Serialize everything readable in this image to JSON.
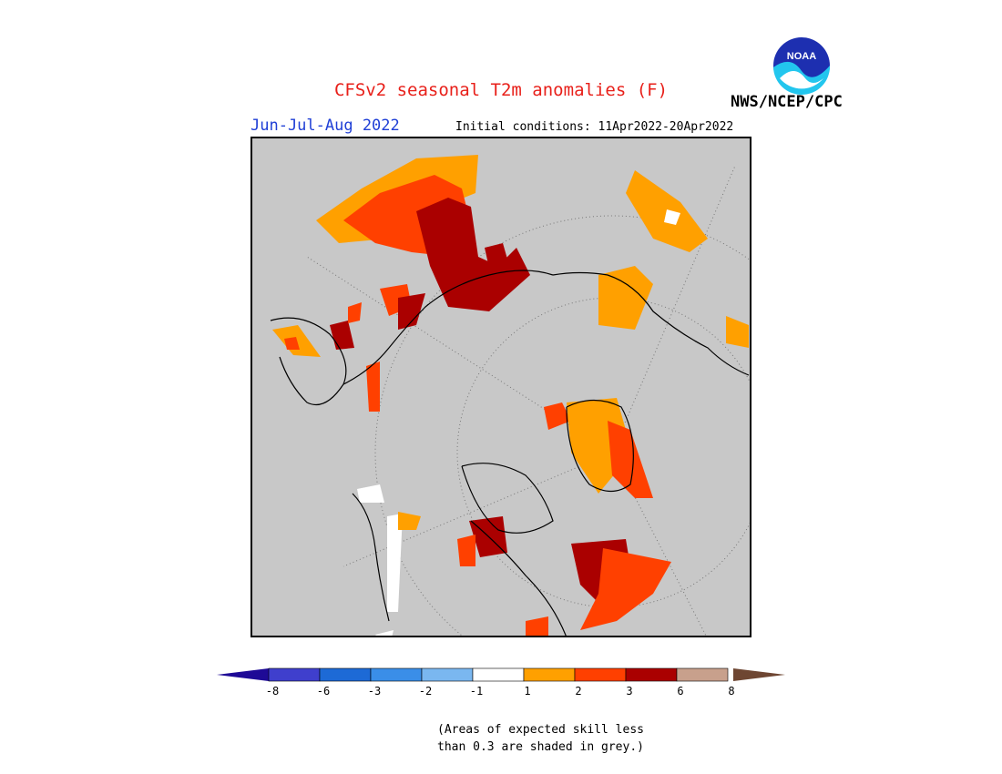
{
  "header": {
    "title": "CFSv2 seasonal T2m anomalies (F)",
    "season": "Jun-Jul-Aug 2022",
    "initial_conditions": "Initial conditions: 11Apr2022-20Apr2022",
    "agency": "NWS/NCEP/CPC",
    "logo_text": "NOAA"
  },
  "map": {
    "projection": "north-polar-stereographic",
    "skill_mask_color": "#c8c8c8"
  },
  "colorbar": {
    "ticks": [
      "-8",
      "-6",
      "-3",
      "-2",
      "-1",
      "1",
      "2",
      "3",
      "6",
      "8"
    ],
    "colors": [
      "#1e0a96",
      "#3f3fcd",
      "#1d6ad6",
      "#3a8ee8",
      "#7ab7f0",
      "#ffffff",
      "#ffa000",
      "#ff4000",
      "#aa0000",
      "#c8a08c",
      "#6e4632"
    ]
  },
  "footnote": {
    "line1": "(Areas of expected skill less",
    "line2": "than 0.3 are shaded in grey.)"
  }
}
